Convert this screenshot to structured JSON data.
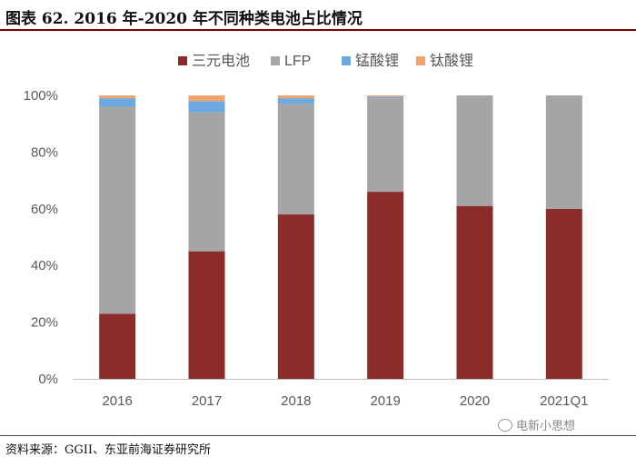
{
  "header": {
    "title": "图表 62. 2016 年-2020 年不同种类电池占比情况"
  },
  "footer": {
    "source": "资料来源：GGII、东亚前海证券研究所"
  },
  "watermark": {
    "text": "电新小思想",
    "icon": "wechat-icon"
  },
  "colors": {
    "三元电池": "#8b2c2a",
    "LFP": "#a5a5a5",
    "锰酸锂": "#6ea8e0",
    "钛酸锂": "#f0a46c"
  },
  "chart_data": {
    "type": "bar",
    "stacked": true,
    "categories": [
      "2016",
      "2017",
      "2018",
      "2019",
      "2020",
      "2021Q1"
    ],
    "series": [
      {
        "name": "三元电池",
        "values": [
          23,
          45,
          58,
          66,
          61,
          60
        ]
      },
      {
        "name": "LFP",
        "values": [
          73,
          49,
          39,
          33,
          39,
          40
        ]
      },
      {
        "name": "锰酸锂",
        "values": [
          3,
          4,
          2,
          0.5,
          0,
          0
        ]
      },
      {
        "name": "钛酸锂",
        "values": [
          1,
          2,
          1,
          0.5,
          0,
          0
        ]
      }
    ],
    "yticks": [
      "0%",
      "20%",
      "40%",
      "60%",
      "80%",
      "100%"
    ],
    "ylim": [
      0,
      100
    ],
    "legend": "top",
    "grid": false
  }
}
